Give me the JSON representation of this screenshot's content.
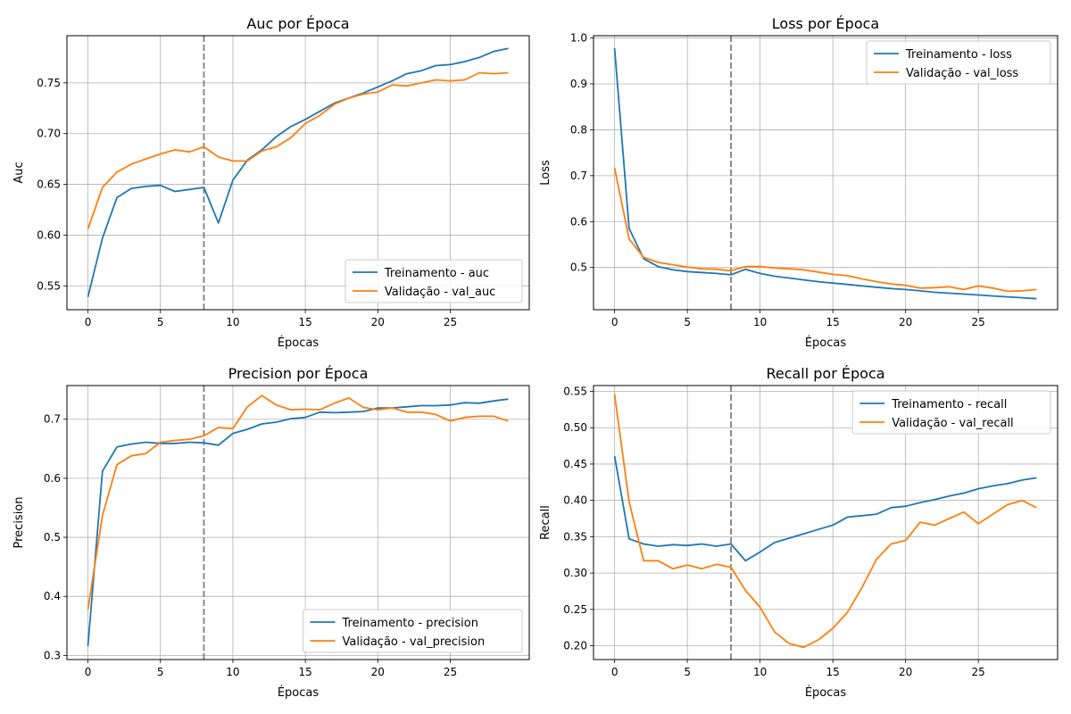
{
  "chart_data": [
    {
      "type": "line",
      "title": "Auc por Época",
      "xlabel": "Épocas",
      "ylabel": "Auc",
      "xlim": [
        -1.45,
        30.45
      ],
      "ylim": [
        0.5265,
        0.7965
      ],
      "xticks": [
        0,
        5,
        10,
        15,
        20,
        25
      ],
      "yticks": [
        0.55,
        0.6,
        0.65,
        0.7,
        0.75
      ],
      "ytick_decimals": 2,
      "vline_x": 8,
      "legend": "lower-right",
      "grid": true,
      "x": [
        0,
        1,
        2,
        3,
        4,
        5,
        6,
        7,
        8,
        9,
        10,
        11,
        12,
        13,
        14,
        15,
        16,
        17,
        18,
        19,
        20,
        21,
        22,
        23,
        24,
        25,
        26,
        27,
        28,
        29
      ],
      "series": [
        {
          "name": "Treinamento - auc",
          "color": "#1f77b4",
          "values": [
            0.539,
            0.597,
            0.637,
            0.646,
            0.648,
            0.649,
            0.643,
            0.645,
            0.647,
            0.612,
            0.654,
            0.674,
            0.684,
            0.697,
            0.707,
            0.714,
            0.722,
            0.73,
            0.735,
            0.74,
            0.746,
            0.752,
            0.759,
            0.762,
            0.767,
            0.768,
            0.771,
            0.775,
            0.781,
            0.784
          ]
        },
        {
          "name": "Validação - val_auc",
          "color": "#ff7f0e",
          "values": [
            0.606,
            0.647,
            0.662,
            0.67,
            0.675,
            0.68,
            0.684,
            0.682,
            0.687,
            0.677,
            0.673,
            0.673,
            0.683,
            0.687,
            0.696,
            0.71,
            0.718,
            0.729,
            0.735,
            0.739,
            0.741,
            0.748,
            0.747,
            0.75,
            0.753,
            0.752,
            0.753,
            0.76,
            0.759,
            0.76
          ]
        }
      ]
    },
    {
      "type": "line",
      "title": "Loss por Época",
      "xlabel": "Épocas",
      "ylabel": "Loss",
      "xlim": [
        -1.45,
        30.45
      ],
      "ylim": [
        0.408,
        1.005
      ],
      "xticks": [
        0,
        5,
        10,
        15,
        20,
        25
      ],
      "yticks": [
        0.5,
        0.6,
        0.7,
        0.8,
        0.9,
        1.0
      ],
      "ytick_decimals": 1,
      "vline_x": 8,
      "legend": "upper-right",
      "grid": true,
      "x": [
        0,
        1,
        2,
        3,
        4,
        5,
        6,
        7,
        8,
        9,
        10,
        11,
        12,
        13,
        14,
        15,
        16,
        17,
        18,
        19,
        20,
        21,
        22,
        23,
        24,
        25,
        26,
        27,
        28,
        29
      ],
      "series": [
        {
          "name": "Treinamento - loss",
          "color": "#1f77b4",
          "values": [
            0.978,
            0.585,
            0.519,
            0.502,
            0.495,
            0.491,
            0.489,
            0.487,
            0.484,
            0.496,
            0.487,
            0.481,
            0.477,
            0.473,
            0.469,
            0.466,
            0.463,
            0.46,
            0.457,
            0.454,
            0.452,
            0.449,
            0.446,
            0.444,
            0.442,
            0.44,
            0.438,
            0.436,
            0.434,
            0.432
          ]
        },
        {
          "name": "Validação - val_loss",
          "color": "#ff7f0e",
          "values": [
            0.717,
            0.562,
            0.522,
            0.511,
            0.506,
            0.501,
            0.497,
            0.496,
            0.493,
            0.502,
            0.502,
            0.499,
            0.497,
            0.495,
            0.49,
            0.485,
            0.482,
            0.475,
            0.469,
            0.464,
            0.461,
            0.455,
            0.456,
            0.458,
            0.452,
            0.46,
            0.455,
            0.448,
            0.449,
            0.452
          ]
        }
      ]
    },
    {
      "type": "line",
      "title": "Precision por Época",
      "xlabel": "Épocas",
      "ylabel": "Precision",
      "xlim": [
        -1.45,
        30.45
      ],
      "ylim": [
        0.293,
        0.757
      ],
      "xticks": [
        0,
        5,
        10,
        15,
        20,
        25
      ],
      "yticks": [
        0.3,
        0.4,
        0.5,
        0.6,
        0.7
      ],
      "ytick_decimals": 1,
      "vline_x": 8,
      "legend": "lower-right",
      "grid": true,
      "x": [
        0,
        1,
        2,
        3,
        4,
        5,
        6,
        7,
        8,
        9,
        10,
        11,
        12,
        13,
        14,
        15,
        16,
        17,
        18,
        19,
        20,
        21,
        22,
        23,
        24,
        25,
        26,
        27,
        28,
        29
      ],
      "series": [
        {
          "name": "Treinamento - precision",
          "color": "#1f77b4",
          "values": [
            0.316,
            0.612,
            0.653,
            0.658,
            0.661,
            0.659,
            0.659,
            0.661,
            0.66,
            0.656,
            0.676,
            0.683,
            0.692,
            0.695,
            0.701,
            0.703,
            0.712,
            0.711,
            0.712,
            0.713,
            0.719,
            0.719,
            0.721,
            0.723,
            0.723,
            0.724,
            0.728,
            0.727,
            0.731,
            0.734
          ]
        },
        {
          "name": "Validação - val_precision",
          "color": "#ff7f0e",
          "values": [
            0.378,
            0.537,
            0.623,
            0.638,
            0.642,
            0.661,
            0.664,
            0.666,
            0.672,
            0.686,
            0.684,
            0.721,
            0.74,
            0.724,
            0.716,
            0.717,
            0.716,
            0.727,
            0.736,
            0.72,
            0.716,
            0.719,
            0.712,
            0.712,
            0.708,
            0.697,
            0.703,
            0.705,
            0.705,
            0.697
          ]
        }
      ]
    },
    {
      "type": "line",
      "title": "Recall por Época",
      "xlabel": "Épocas",
      "ylabel": "Recall",
      "xlim": [
        -1.45,
        30.45
      ],
      "ylim": [
        0.181,
        0.558
      ],
      "xticks": [
        0,
        5,
        10,
        15,
        20,
        25
      ],
      "yticks": [
        0.2,
        0.25,
        0.3,
        0.35,
        0.4,
        0.45,
        0.5,
        0.55
      ],
      "ytick_decimals": 2,
      "vline_x": 8,
      "legend": "upper-right",
      "grid": true,
      "x": [
        0,
        1,
        2,
        3,
        4,
        5,
        6,
        7,
        8,
        9,
        10,
        11,
        12,
        13,
        14,
        15,
        16,
        17,
        18,
        19,
        20,
        21,
        22,
        23,
        24,
        25,
        26,
        27,
        28,
        29
      ],
      "series": [
        {
          "name": "Treinamento - recall",
          "color": "#1f77b4",
          "values": [
            0.461,
            0.347,
            0.34,
            0.337,
            0.339,
            0.338,
            0.34,
            0.337,
            0.34,
            0.317,
            0.329,
            0.342,
            0.348,
            0.354,
            0.36,
            0.366,
            0.377,
            0.379,
            0.381,
            0.39,
            0.392,
            0.397,
            0.401,
            0.406,
            0.41,
            0.416,
            0.42,
            0.423,
            0.428,
            0.431
          ]
        },
        {
          "name": "Validação - val_recall",
          "color": "#ff7f0e",
          "values": [
            0.546,
            0.398,
            0.317,
            0.317,
            0.306,
            0.311,
            0.306,
            0.312,
            0.308,
            0.276,
            0.253,
            0.219,
            0.203,
            0.198,
            0.208,
            0.224,
            0.246,
            0.28,
            0.319,
            0.34,
            0.345,
            0.37,
            0.366,
            0.375,
            0.384,
            0.368,
            0.381,
            0.394,
            0.4,
            0.39
          ]
        }
      ]
    }
  ]
}
